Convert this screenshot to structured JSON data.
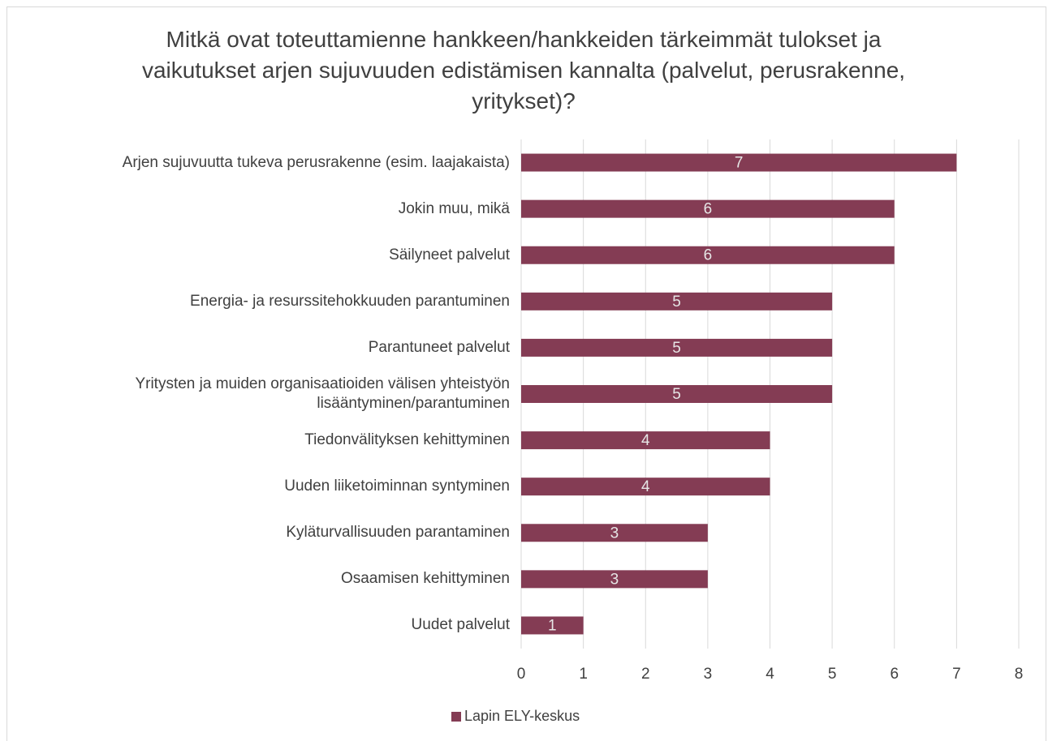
{
  "chart_data": {
    "type": "bar",
    "orientation": "horizontal",
    "title": "Mitkä ovat toteuttamienne hankkeen/hankkeiden tärkeimmät tulokset ja vaikutukset arjen sujuvuuden edistämisen kannalta (palvelut, perusrakenne, yritykset)?",
    "categories": [
      "Arjen sujuvuutta tukeva perusrakenne (esim. laajakaista)",
      "Jokin muu, mikä",
      "Säilyneet palvelut",
      "Energia- ja resurssitehokkuuden parantuminen",
      "Parantuneet palvelut",
      "Yritysten ja muiden organisaatioiden välisen yhteistyön lisääntyminen/parantuminen",
      "Tiedonvälityksen kehittyminen",
      "Uuden liiketoiminnan syntyminen",
      "Kyläturvallisuuden parantaminen",
      "Osaamisen kehittyminen",
      "Uudet palvelut"
    ],
    "series": [
      {
        "name": "Lapin ELY-keskus",
        "color": "#843c54",
        "values": [
          7,
          6,
          6,
          5,
          5,
          5,
          4,
          4,
          3,
          3,
          1
        ]
      }
    ],
    "xlim": [
      0,
      8
    ],
    "xticks": [
      0,
      1,
      2,
      3,
      4,
      5,
      6,
      7,
      8
    ],
    "grid": true,
    "legend": "bottom"
  }
}
